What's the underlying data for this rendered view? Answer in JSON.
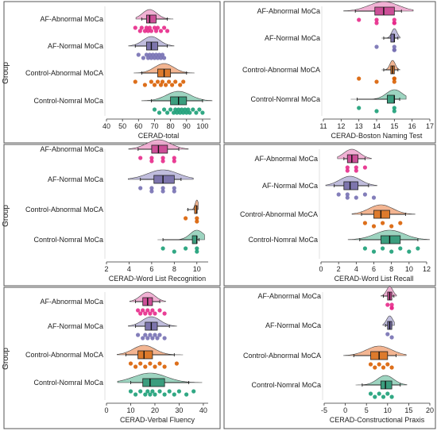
{
  "colors": {
    "group_colors": [
      "#e7298a",
      "#7570b3",
      "#d95f02",
      "#1b9e77"
    ],
    "violin_fills": [
      "#f0a9cf",
      "#b9b6d9",
      "#f2ad86",
      "#92cfb9"
    ],
    "box_fills": [
      "#cc4f97",
      "#7d75ad",
      "#dd7a2c",
      "#3b9d7e"
    ],
    "frame": "#555555"
  },
  "chart_data": [
    {
      "type": "raincloud",
      "panel": "top-left",
      "xlabel": "CERAD-total",
      "ylabel": "Group",
      "xlim": [
        40,
        105
      ],
      "xticks": [
        40,
        50,
        60,
        70,
        80,
        90,
        100
      ],
      "groups": [
        {
          "name": "AF-Abnormal MoCa",
          "box": [
            62,
            65,
            67,
            71,
            78
          ],
          "points": [
            58,
            61,
            62,
            64,
            65,
            66,
            67,
            68,
            70,
            71,
            72,
            74,
            76,
            78
          ]
        },
        {
          "name": "AF-Normal MoCa",
          "box": [
            58,
            65,
            68,
            72,
            78
          ],
          "points": [
            60,
            63,
            65,
            66,
            67,
            68,
            69,
            70,
            71,
            72,
            73,
            74,
            75,
            76
          ]
        },
        {
          "name": "Control-Abnormal MoCA",
          "box": [
            62,
            72,
            76,
            80,
            90
          ],
          "points": [
            58,
            64,
            68,
            70,
            72,
            74,
            75,
            77,
            79,
            81,
            83,
            86,
            88
          ]
        },
        {
          "name": "Control-Nomral MoCa",
          "box": [
            68,
            80,
            85,
            90,
            100
          ],
          "points": [
            70,
            73,
            76,
            78,
            80,
            82,
            83,
            84,
            85,
            86,
            87,
            88,
            89,
            90,
            91,
            92,
            94,
            96,
            98,
            100
          ]
        }
      ]
    },
    {
      "type": "raincloud",
      "panel": "top-right",
      "xlabel": "CERAD-Boston Naming Test",
      "ylabel": "",
      "xlim": [
        11,
        17
      ],
      "xticks": [
        11,
        12,
        13,
        14,
        15,
        16,
        17
      ],
      "groups": [
        {
          "name": "AF-Abnormal MoCa",
          "box": [
            12.8,
            13.9,
            14.4,
            15,
            15.4
          ],
          "points": [
            13,
            14,
            14,
            15,
            15,
            15
          ]
        },
        {
          "name": "AF-Normal MoCa",
          "box": [
            14.4,
            14.8,
            15,
            15,
            15.2
          ],
          "points": [
            14,
            15,
            15,
            15
          ]
        },
        {
          "name": "Control-Abnormal MoCA",
          "box": [
            14.4,
            14.8,
            14.9,
            15,
            15.2
          ],
          "points": [
            13,
            14,
            15,
            15,
            15
          ]
        },
        {
          "name": "Control-Nomral MoCa",
          "box": [
            12.9,
            14.6,
            15,
            15,
            15.3
          ],
          "points": [
            13,
            14,
            15,
            15
          ]
        }
      ]
    },
    {
      "type": "raincloud",
      "panel": "middle-left",
      "xlabel": "CERAD-Word List Recognition",
      "ylabel": "Group",
      "xlim": [
        2,
        11
      ],
      "xticks": [
        2,
        4,
        6,
        8,
        10
      ],
      "groups": [
        {
          "name": "AF-Abnormal MoCa",
          "box": [
            4.8,
            6,
            6.6,
            7.4,
            8.4
          ],
          "points": [
            5,
            6,
            6,
            7,
            7,
            8,
            8
          ]
        },
        {
          "name": "AF-Normal MoCa",
          "box": [
            5,
            6.2,
            7,
            8,
            8.6
          ],
          "points": [
            5,
            6,
            6,
            7,
            7,
            8,
            8
          ]
        },
        {
          "name": "Control-Abnormal MoCA",
          "box": [
            9.2,
            9.8,
            10,
            10,
            10
          ],
          "points": [
            9,
            10,
            10
          ]
        },
        {
          "name": "Control-Nomral MoCa",
          "box": [
            7,
            9.6,
            10,
            10,
            10.2
          ],
          "points": [
            7,
            8,
            9,
            10,
            10
          ]
        }
      ]
    },
    {
      "type": "raincloud",
      "panel": "middle-right",
      "xlabel": "CERAD-Word List Recall",
      "ylabel": "",
      "xlim": [
        0,
        12
      ],
      "xticks": [
        0,
        2,
        4,
        6,
        8,
        10,
        12
      ],
      "groups": [
        {
          "name": "AF-Abnormal MoCa",
          "box": [
            2.6,
            3,
            3.5,
            4.2,
            5
          ],
          "points": [
            3,
            3,
            4,
            4,
            5
          ]
        },
        {
          "name": "AF-Normal MoCa",
          "box": [
            1.5,
            2.6,
            3.3,
            4.2,
            5.4
          ],
          "points": [
            2,
            3,
            3,
            4,
            5,
            6
          ]
        },
        {
          "name": "Control-Abnormal MoCA",
          "box": [
            4.6,
            6,
            6.8,
            7.8,
            9.6
          ],
          "points": [
            5,
            6,
            7,
            8,
            9
          ]
        },
        {
          "name": "Control-Nomral MoCa",
          "box": [
            4.4,
            6.8,
            7.8,
            9,
            11
          ],
          "points": [
            5,
            6,
            7,
            8,
            9,
            10,
            11
          ]
        }
      ]
    },
    {
      "type": "raincloud",
      "panel": "bottom-left",
      "xlabel": "CERAD-Verbal Fluency",
      "ylabel": "Group",
      "xlim": [
        0,
        42
      ],
      "xticks": [
        0,
        10,
        20,
        30,
        40
      ],
      "groups": [
        {
          "name": "AF-Abnormal MoCa",
          "box": [
            12,
            15,
            17,
            19,
            22
          ],
          "points": [
            13,
            14,
            15,
            16,
            17,
            18,
            19,
            20,
            22,
            24
          ]
        },
        {
          "name": "AF-Normal MoCa",
          "box": [
            12,
            16,
            18.5,
            21,
            26
          ],
          "points": [
            13,
            15,
            16,
            17,
            18,
            19,
            20,
            21,
            22,
            24
          ]
        },
        {
          "name": "Control-Abnormal MoCA",
          "box": [
            8,
            13,
            15.5,
            19,
            28
          ],
          "points": [
            10,
            12,
            14,
            16,
            18,
            20,
            22,
            24,
            29
          ]
        },
        {
          "name": "Control-Nomral MoCa",
          "box": [
            10,
            15,
            18,
            24,
            34
          ],
          "points": [
            10,
            12,
            14,
            16,
            17,
            18,
            19,
            20,
            22,
            24,
            26,
            28,
            30,
            33,
            36
          ]
        }
      ]
    },
    {
      "type": "raincloud",
      "panel": "bottom-right",
      "xlabel": "CERAD-Constructional Praxis",
      "ylabel": "",
      "xlim": [
        -5,
        20
      ],
      "xticks": [
        -5,
        0,
        5,
        10,
        15,
        20
      ],
      "groups": [
        {
          "name": "AF-Abnormal MoCa",
          "box": [
            9,
            10,
            10.5,
            11,
            11.5
          ],
          "points": [
            10,
            11,
            11,
            11
          ]
        },
        {
          "name": "AF-Normal MoCa",
          "box": [
            9.5,
            10,
            10.5,
            11,
            11
          ],
          "points": [
            10,
            11
          ]
        },
        {
          "name": "Control-Abnormal MoCA",
          "box": [
            2,
            6,
            8,
            10,
            12
          ],
          "points": [
            6,
            7,
            8,
            9,
            10,
            11
          ]
        },
        {
          "name": "Control-Nomral MoCa",
          "box": [
            4,
            8.4,
            9.5,
            11,
            13
          ],
          "points": [
            6,
            7,
            8,
            9,
            10,
            11
          ]
        }
      ]
    }
  ]
}
